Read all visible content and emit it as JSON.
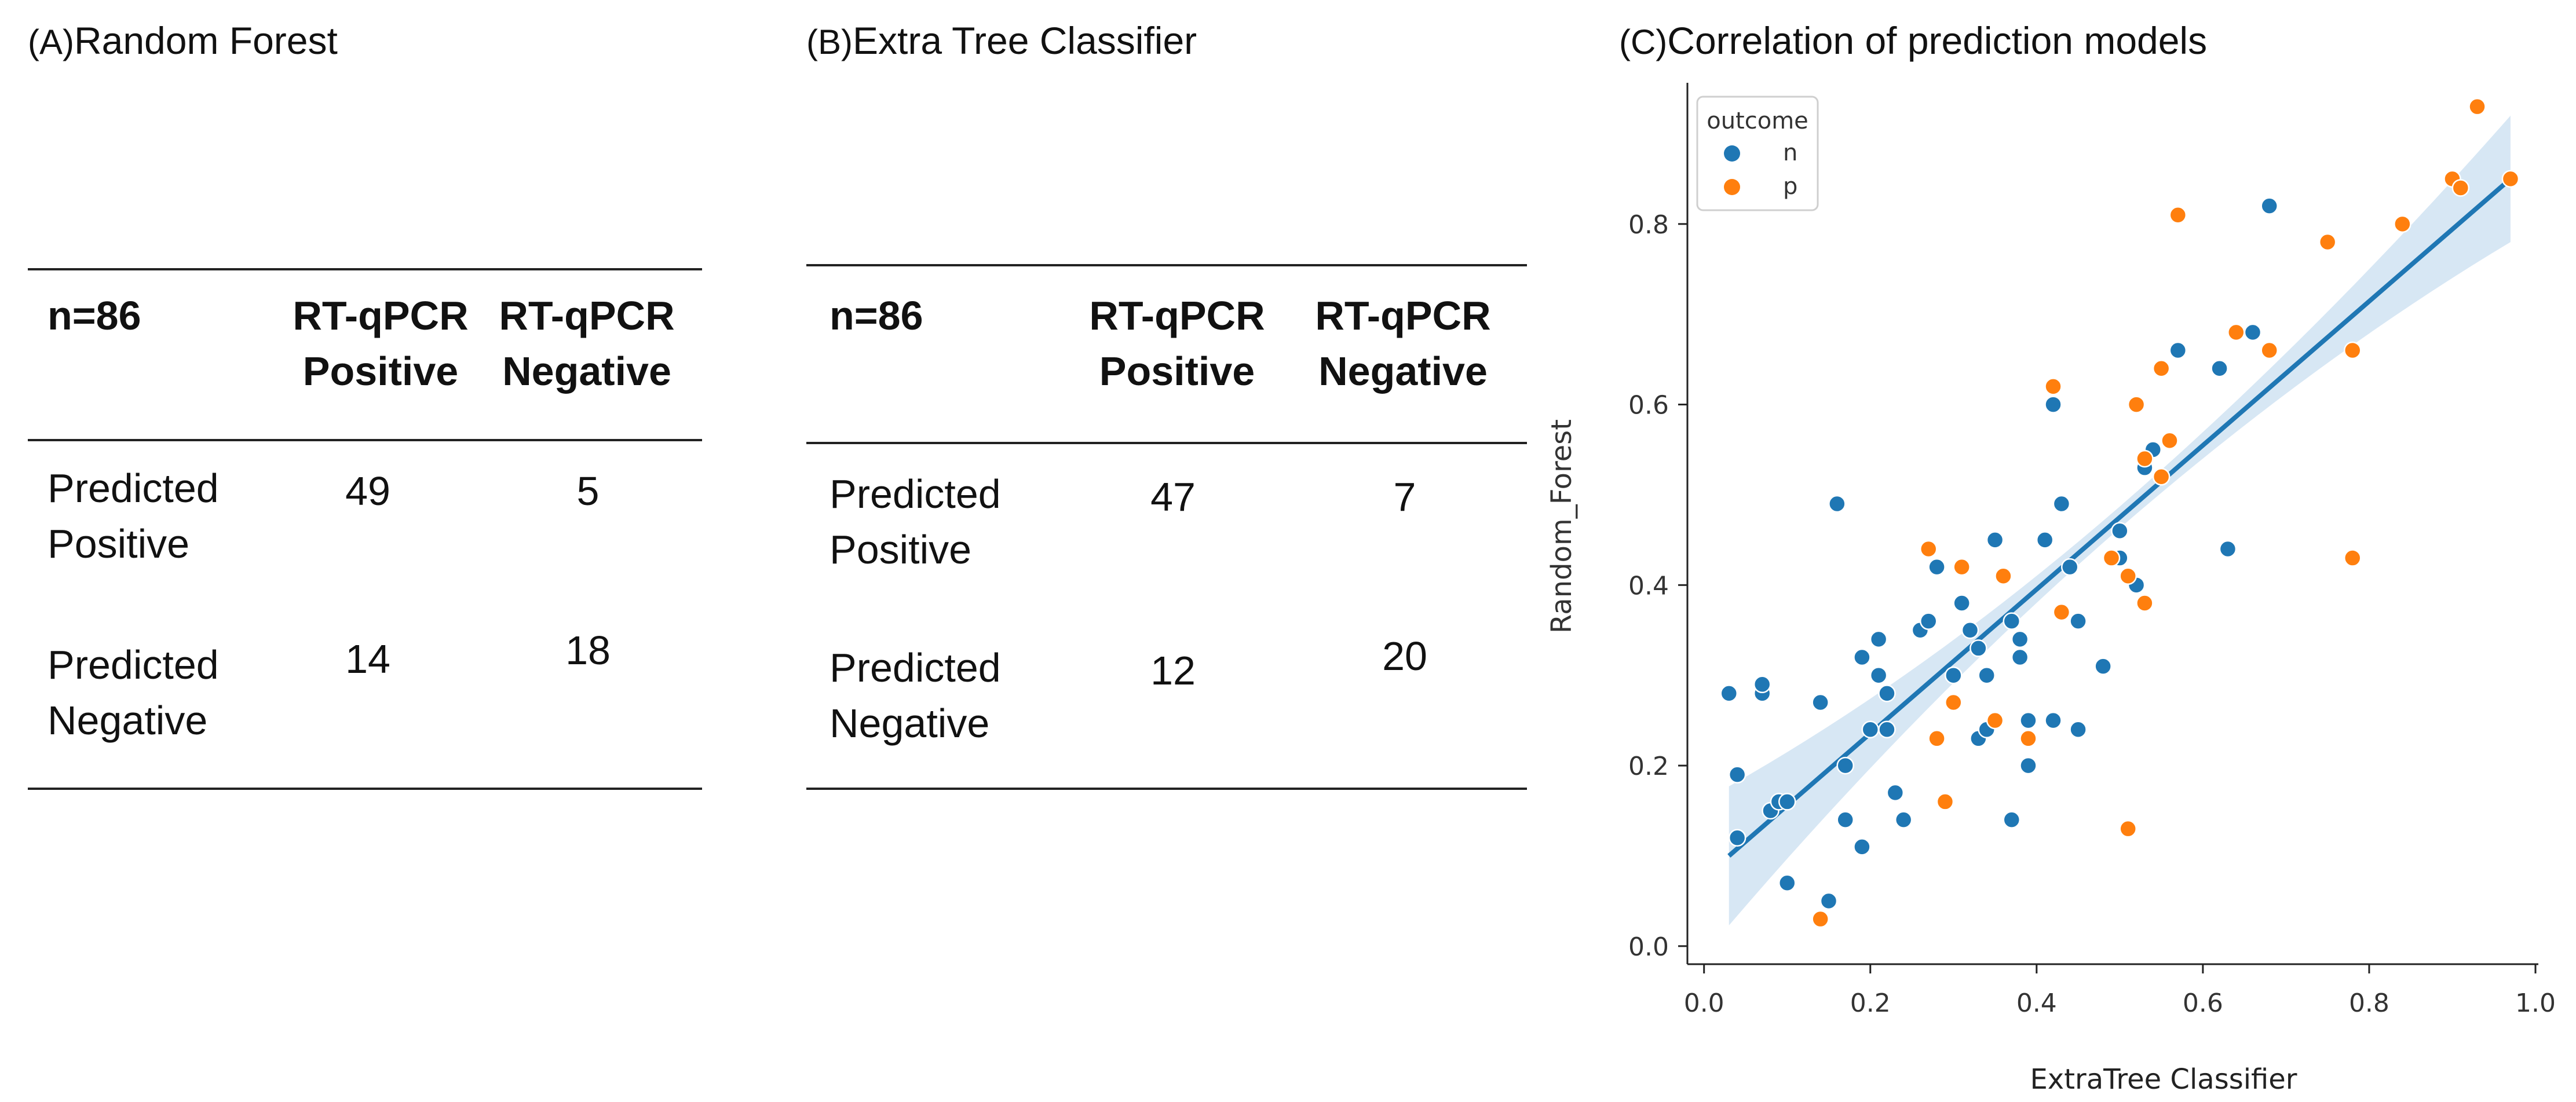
{
  "panels": [
    {
      "label": "(A)",
      "title": "Random Forest",
      "header": [
        "n=86",
        "RT-qPCR\nPositive",
        "RT-qPCR\nNegative"
      ],
      "rows": [
        {
          "label": "Predicted\nPositive",
          "values": [
            49,
            5
          ]
        },
        {
          "label": "Predicted\nNegative",
          "values": [
            14,
            18
          ]
        }
      ]
    },
    {
      "label": "(B)",
      "title": "Extra Tree Classifier",
      "header": [
        "n=86",
        "RT-qPCR\nPositive",
        "RT-qPCR\nNegative"
      ],
      "rows": [
        {
          "label": "Predicted\nPositive",
          "values": [
            47,
            7
          ]
        },
        {
          "label": "Predicted\nNegative",
          "values": [
            12,
            20
          ]
        }
      ]
    }
  ],
  "panel_c": {
    "label": "(C)",
    "title": "Correlation of prediction models"
  },
  "chart_data": {
    "type": "scatter",
    "xlabel": "ExtraTree Classifier",
    "ylabel": "Random_Forest",
    "xlim": [
      -0.02,
      1.0
    ],
    "ylim": [
      -0.02,
      0.95
    ],
    "xticks": [
      "0.0",
      "0.2",
      "0.4",
      "0.6",
      "0.8",
      "1.0"
    ],
    "yticks": [
      "0.0",
      "0.2",
      "0.4",
      "0.6",
      "0.8"
    ],
    "legend": {
      "title": "outcome",
      "position": "top-left"
    },
    "colors": {
      "n": "#1f77b4",
      "p": "#ff7f0e",
      "line": "#1f77b4",
      "band": "#c9dff0"
    },
    "regression": {
      "x": [
        0.03,
        0.97
      ],
      "y": [
        0.1,
        0.85
      ],
      "band": [
        0.035,
        0.012,
        0.07
      ]
    },
    "series": [
      {
        "name": "n",
        "points": [
          [
            0.03,
            0.28
          ],
          [
            0.04,
            0.12
          ],
          [
            0.04,
            0.19
          ],
          [
            0.07,
            0.28
          ],
          [
            0.07,
            0.29
          ],
          [
            0.08,
            0.15
          ],
          [
            0.09,
            0.16
          ],
          [
            0.1,
            0.16
          ],
          [
            0.1,
            0.07
          ],
          [
            0.14,
            0.27
          ],
          [
            0.15,
            0.05
          ],
          [
            0.16,
            0.49
          ],
          [
            0.17,
            0.2
          ],
          [
            0.17,
            0.14
          ],
          [
            0.19,
            0.11
          ],
          [
            0.19,
            0.32
          ],
          [
            0.2,
            0.24
          ],
          [
            0.21,
            0.34
          ],
          [
            0.21,
            0.3
          ],
          [
            0.22,
            0.28
          ],
          [
            0.22,
            0.24
          ],
          [
            0.23,
            0.17
          ],
          [
            0.24,
            0.14
          ],
          [
            0.26,
            0.35
          ],
          [
            0.27,
            0.36
          ],
          [
            0.28,
            0.42
          ],
          [
            0.29,
            0.16
          ],
          [
            0.3,
            0.3
          ],
          [
            0.31,
            0.38
          ],
          [
            0.32,
            0.35
          ],
          [
            0.33,
            0.33
          ],
          [
            0.33,
            0.23
          ],
          [
            0.34,
            0.3
          ],
          [
            0.34,
            0.24
          ],
          [
            0.35,
            0.45
          ],
          [
            0.37,
            0.36
          ],
          [
            0.37,
            0.14
          ],
          [
            0.38,
            0.34
          ],
          [
            0.38,
            0.32
          ],
          [
            0.39,
            0.25
          ],
          [
            0.39,
            0.2
          ],
          [
            0.41,
            0.45
          ],
          [
            0.42,
            0.25
          ],
          [
            0.42,
            0.6
          ],
          [
            0.43,
            0.49
          ],
          [
            0.44,
            0.42
          ],
          [
            0.45,
            0.36
          ],
          [
            0.45,
            0.24
          ],
          [
            0.48,
            0.31
          ],
          [
            0.5,
            0.43
          ],
          [
            0.5,
            0.46
          ],
          [
            0.52,
            0.4
          ],
          [
            0.53,
            0.53
          ],
          [
            0.54,
            0.55
          ],
          [
            0.55,
            0.52
          ],
          [
            0.57,
            0.66
          ],
          [
            0.62,
            0.64
          ],
          [
            0.63,
            0.44
          ],
          [
            0.66,
            0.68
          ],
          [
            0.68,
            0.82
          ]
        ]
      },
      {
        "name": "p",
        "points": [
          [
            0.14,
            0.03
          ],
          [
            0.27,
            0.44
          ],
          [
            0.28,
            0.23
          ],
          [
            0.29,
            0.16
          ],
          [
            0.3,
            0.27
          ],
          [
            0.31,
            0.42
          ],
          [
            0.35,
            0.25
          ],
          [
            0.36,
            0.41
          ],
          [
            0.39,
            0.23
          ],
          [
            0.42,
            0.62
          ],
          [
            0.43,
            0.37
          ],
          [
            0.49,
            0.43
          ],
          [
            0.51,
            0.41
          ],
          [
            0.51,
            0.13
          ],
          [
            0.52,
            0.6
          ],
          [
            0.53,
            0.54
          ],
          [
            0.53,
            0.38
          ],
          [
            0.55,
            0.52
          ],
          [
            0.55,
            0.64
          ],
          [
            0.56,
            0.56
          ],
          [
            0.57,
            0.81
          ],
          [
            0.64,
            0.68
          ],
          [
            0.68,
            0.66
          ],
          [
            0.75,
            0.78
          ],
          [
            0.78,
            0.66
          ],
          [
            0.78,
            0.43
          ],
          [
            0.84,
            0.8
          ],
          [
            0.9,
            0.85
          ],
          [
            0.91,
            0.84
          ],
          [
            0.93,
            0.93
          ],
          [
            0.97,
            0.85
          ]
        ]
      }
    ]
  }
}
